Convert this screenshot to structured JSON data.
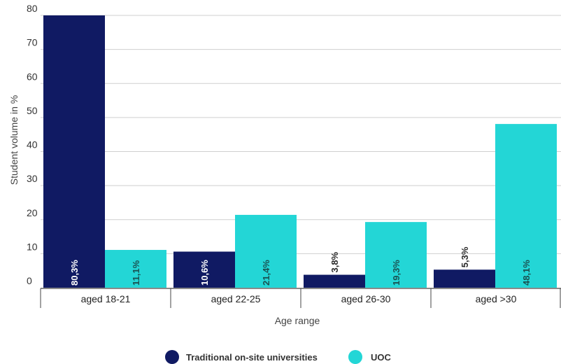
{
  "chart_data": {
    "type": "bar",
    "title": "",
    "xlabel": "Age range",
    "ylabel": "Student volume in %",
    "ylim": [
      0,
      80
    ],
    "yticks": [
      0,
      10,
      20,
      30,
      40,
      50,
      60,
      70,
      80
    ],
    "categories": [
      "aged 18-21",
      "aged 22-25",
      "aged 26-30",
      "aged >30"
    ],
    "series": [
      {
        "name": "Traditional on-site universities",
        "color": "#101a63",
        "values": [
          80.3,
          10.6,
          3.8,
          5.3
        ],
        "labels": [
          "80,3%",
          "10,6%",
          "3,8%",
          "5,3%"
        ]
      },
      {
        "name": "UOC",
        "color": "#23d6d6",
        "values": [
          11.1,
          21.4,
          19.3,
          48.1
        ],
        "labels": [
          "11,1%",
          "21,4%",
          "19,3%",
          "48,1%"
        ]
      }
    ],
    "grid": true,
    "legend": "bottom-center"
  }
}
